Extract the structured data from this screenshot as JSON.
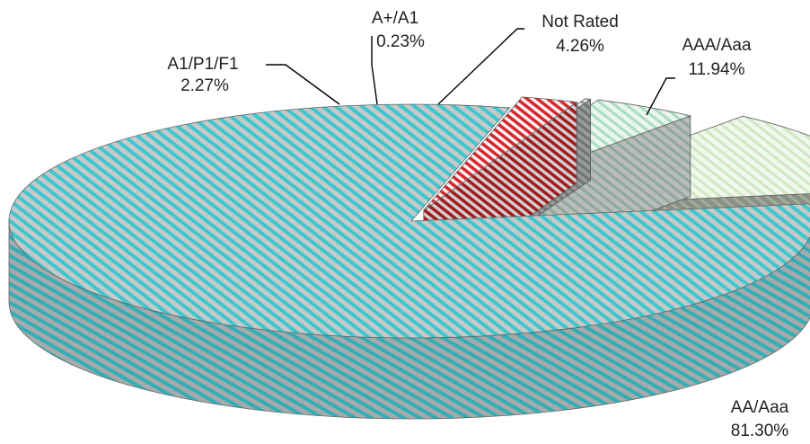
{
  "chart_data": {
    "type": "pie",
    "style": "3d-exploded",
    "categories": [
      "AA/Aaa",
      "A1/P1/F1",
      "A+/A1",
      "Not Rated",
      "AAA/Aaa"
    ],
    "values": [
      81.3,
      2.27,
      0.23,
      4.26,
      11.94
    ],
    "value_labels": [
      "81.30%",
      "2.27%",
      "0.23%",
      "4.26%",
      "11.94%"
    ],
    "colors": [
      "#3cc7cf",
      "#d9262a",
      "#9aa2a3",
      "#a8dcc0",
      "#cfe8c2"
    ],
    "legend": "none",
    "title": ""
  }
}
